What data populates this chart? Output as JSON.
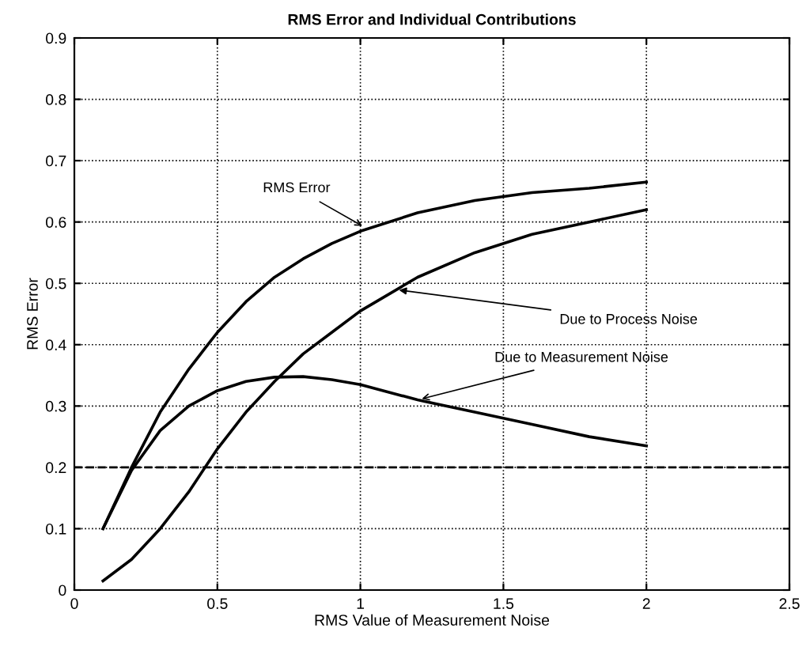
{
  "chart_data": {
    "type": "line",
    "title": "RMS Error and Individual Contributions",
    "xlabel": "RMS Value of Measurement Noise",
    "ylabel": "RMS Error",
    "x": [
      0.1,
      0.2,
      0.3,
      0.4,
      0.5,
      0.6,
      0.7,
      0.8,
      0.9,
      1.0,
      1.2,
      1.4,
      1.6,
      1.8,
      2.0
    ],
    "series": [
      {
        "color": "#000000",
        "values": [
          0.1,
          0.2,
          0.29,
          0.36,
          0.42,
          0.47,
          0.51,
          0.54,
          0.565,
          0.585,
          0.615,
          0.635,
          0.648,
          0.655,
          0.665
        ]
      },
      {
        "color": "#000000",
        "values": [
          0.015,
          0.05,
          0.1,
          0.16,
          0.23,
          0.29,
          0.34,
          0.385,
          0.42,
          0.455,
          0.51,
          0.55,
          0.58,
          0.6,
          0.62
        ]
      },
      {
        "color": "#000000",
        "values": [
          0.1,
          0.195,
          0.26,
          0.3,
          0.325,
          0.34,
          0.347,
          0.348,
          0.343,
          0.335,
          0.31,
          0.29,
          0.27,
          0.25,
          0.235
        ]
      }
    ],
    "annotations": [
      {
        "text": "RMS Error",
        "x": 1.02,
        "y": 0.59
      },
      {
        "text": "Due to Process Noise",
        "x": 1.12,
        "y": 0.49
      },
      {
        "text": "Due to Measurement Noise",
        "x": 1.2,
        "y": 0.31
      }
    ],
    "ref_lines": [
      {
        "axis": "y",
        "value": 0.2,
        "line_style": "dashed",
        "color": "#000000"
      }
    ],
    "xlim": [
      0,
      2.5
    ],
    "ylim": [
      0,
      0.9
    ],
    "xticks": [
      0,
      0.5,
      1,
      1.5,
      2,
      2.5
    ],
    "yticks": [
      0,
      0.1,
      0.2,
      0.3,
      0.4,
      0.5,
      0.6,
      0.7,
      0.8,
      0.9
    ],
    "grid": true,
    "legend": false,
    "marker": "none",
    "line_style": "solid"
  }
}
